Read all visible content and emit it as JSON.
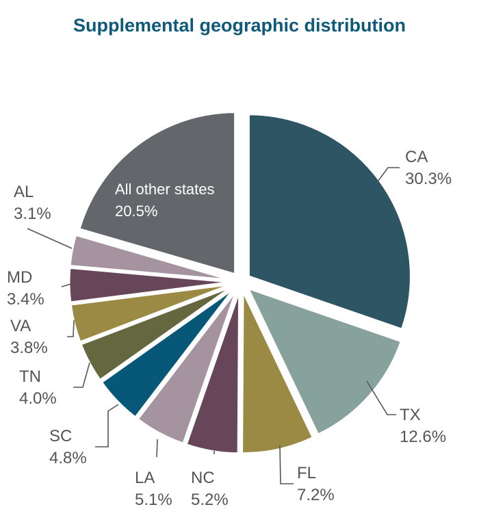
{
  "chart_data": {
    "type": "pie",
    "title": "Supplemental geographic distribution",
    "slices": [
      {
        "label": "CA",
        "value": 30.3,
        "value_label": "30.3%",
        "color": "#2e5563",
        "exploded": true
      },
      {
        "label": "TX",
        "value": 12.6,
        "value_label": "12.6%",
        "color": "#87a19c",
        "exploded": true
      },
      {
        "label": "FL",
        "value": 7.2,
        "value_label": "7.2%",
        "color": "#9a8a43",
        "exploded": true
      },
      {
        "label": "NC",
        "value": 5.2,
        "value_label": "5.2%",
        "color": "#67465a",
        "exploded": true
      },
      {
        "label": "LA",
        "value": 5.1,
        "value_label": "5.1%",
        "color": "#a5949f",
        "exploded": true
      },
      {
        "label": "SC",
        "value": 4.8,
        "value_label": "4.8%",
        "color": "#075778",
        "exploded": true
      },
      {
        "label": "TN",
        "value": 4.0,
        "value_label": "4.0%",
        "color": "#65673f",
        "exploded": true
      },
      {
        "label": "VA",
        "value": 3.8,
        "value_label": "3.8%",
        "color": "#9a8a43",
        "exploded": true
      },
      {
        "label": "MD",
        "value": 3.4,
        "value_label": "3.4%",
        "color": "#67465a",
        "exploded": true
      },
      {
        "label": "AL",
        "value": 3.1,
        "value_label": "3.1%",
        "color": "#a5949f",
        "exploded": true
      },
      {
        "label": "All other states",
        "value": 20.5,
        "value_label": "20.5%",
        "color": "#63666a",
        "exploded": true
      }
    ]
  }
}
